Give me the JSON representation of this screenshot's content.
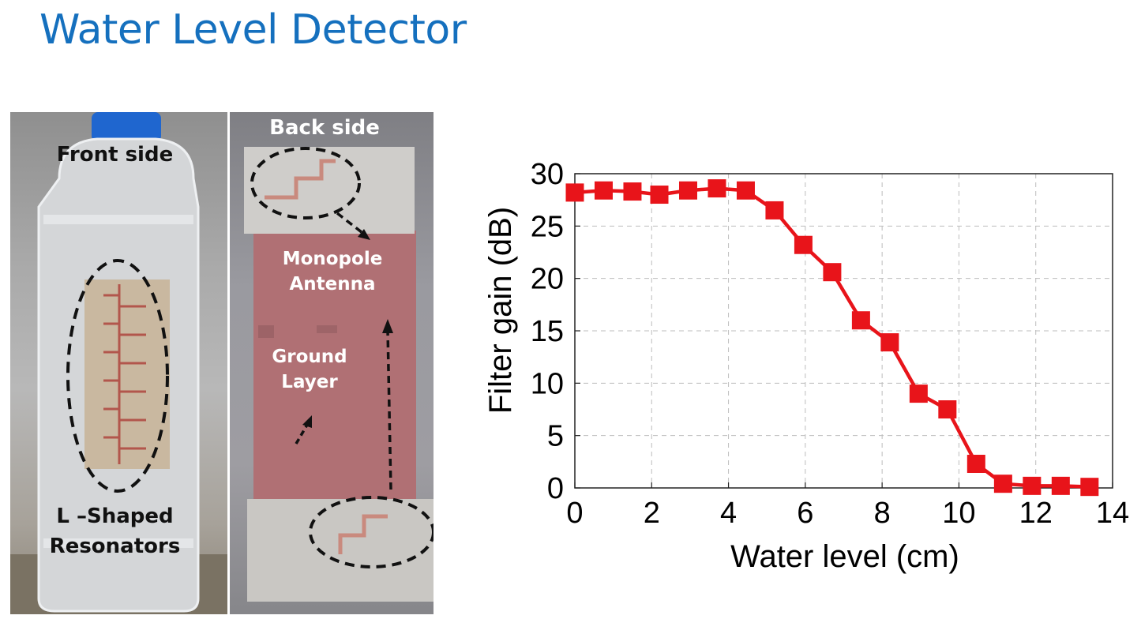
{
  "slide": {
    "title": "Water Level Detector"
  },
  "photos": {
    "front": {
      "label_top": "Front side",
      "label_bottom_line1": "L –Shaped",
      "label_bottom_line2": "Resonators"
    },
    "back": {
      "label_top": "Back side",
      "label_antenna_line1": "Monopole",
      "label_antenna_line2": "Antenna",
      "label_ground_line1": "Ground",
      "label_ground_line2": "Layer"
    }
  },
  "chart_data": {
    "type": "line",
    "title": "",
    "xlabel": "Water level (cm)",
    "ylabel": "Filter gain (dB)",
    "xlim": [
      0,
      14
    ],
    "ylim": [
      0,
      30
    ],
    "xticks": [
      0,
      2,
      4,
      6,
      8,
      10,
      12,
      14
    ],
    "yticks": [
      0,
      5,
      10,
      15,
      20,
      25,
      30
    ],
    "grid": true,
    "legend": "none",
    "series": [
      {
        "color": "#e8141a",
        "marker": "square",
        "x": [
          0,
          0.75,
          1.5,
          2.2,
          2.95,
          3.7,
          4.45,
          5.2,
          5.95,
          6.7,
          7.45,
          8.2,
          8.95,
          9.7,
          10.45,
          11.15,
          11.9,
          12.65,
          13.4
        ],
        "y": [
          28.2,
          28.4,
          28.3,
          28.0,
          28.4,
          28.6,
          28.4,
          26.5,
          23.2,
          20.6,
          16.0,
          13.9,
          9.0,
          7.5,
          2.3,
          0.4,
          0.2,
          0.2,
          0.1
        ]
      }
    ]
  }
}
